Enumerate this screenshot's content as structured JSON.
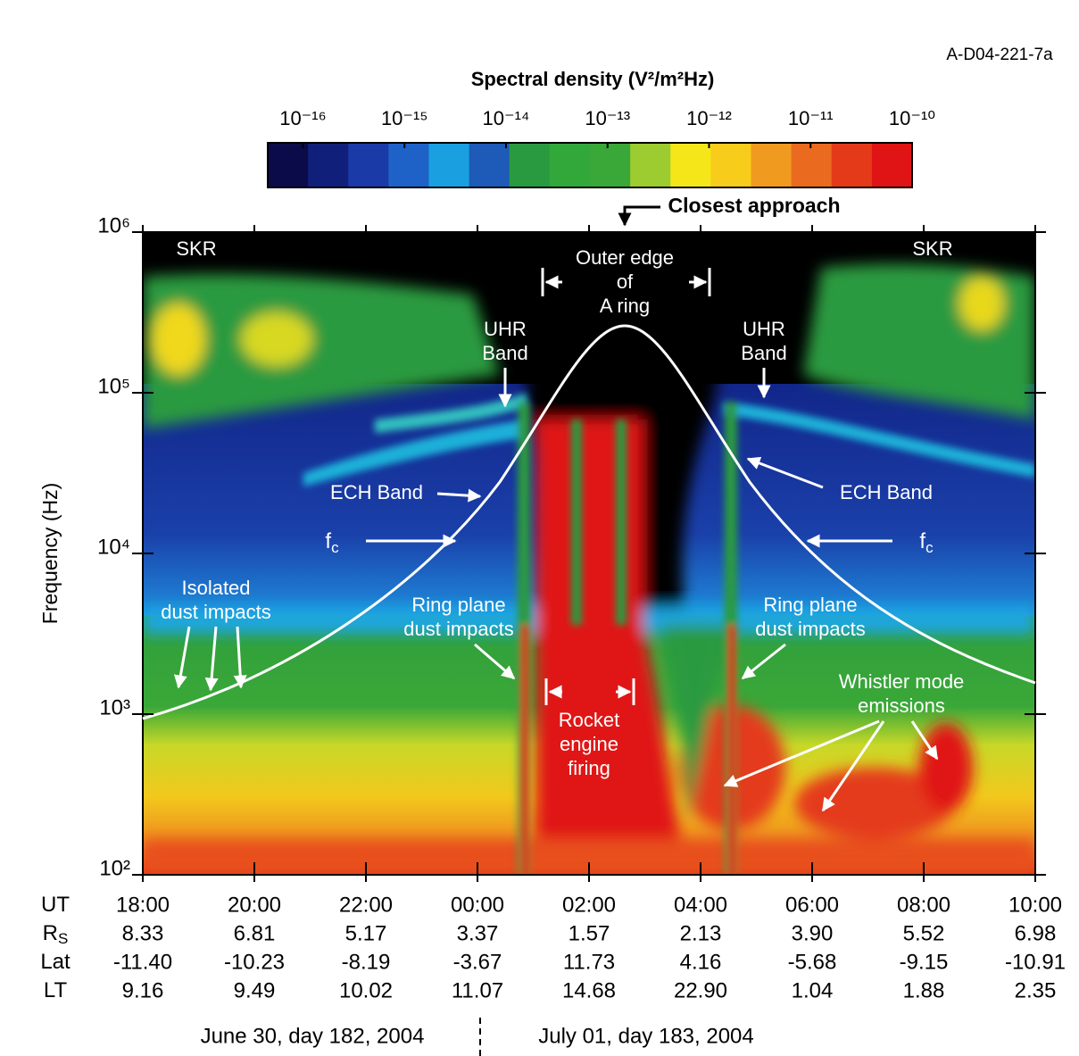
{
  "chart_data": {
    "type": "spectrogram",
    "figure_id": "A-D04-221-7a",
    "colorbar": {
      "title": "Spectral density  (V²/m²Hz)",
      "clim": [
        4.5e-17,
        1e-10
      ],
      "log": true,
      "ticks": [
        {
          "value": 1e-16,
          "label": "10⁻¹⁶"
        },
        {
          "value": 1e-15,
          "label": "10⁻¹⁵"
        },
        {
          "value": 1e-14,
          "label": "10⁻¹⁴"
        },
        {
          "value": 1e-13,
          "label": "10⁻¹³"
        },
        {
          "value": 1e-12,
          "label": "10⁻¹²"
        },
        {
          "value": 1e-11,
          "label": "10⁻¹¹"
        },
        {
          "value": 1e-10,
          "label": "10⁻¹⁰"
        }
      ],
      "colormap": [
        "#0b0b4a",
        "#10207a",
        "#1a3aa8",
        "#1e62c8",
        "#1aa0e0",
        "#1e5ab8",
        "#2a9a40",
        "#33a83a",
        "#3aa838",
        "#9ccc30",
        "#f5e61a",
        "#f8cc1a",
        "#f09a20",
        "#ea6a20",
        "#e43a1a",
        "#e01414"
      ]
    },
    "ylabel": "Frequency  (Hz)",
    "yscale": "log",
    "ylim": [
      100,
      1000000
    ],
    "yticks": [
      {
        "value": 100,
        "label": "10²"
      },
      {
        "value": 1000,
        "label": "10³"
      },
      {
        "value": 10000,
        "label": "10⁴"
      },
      {
        "value": 100000,
        "label": "10⁵"
      },
      {
        "value": 1000000,
        "label": "10⁶"
      }
    ],
    "table": {
      "rows": [
        {
          "label": "UT",
          "values": [
            "18:00",
            "20:00",
            "22:00",
            "00:00",
            "02:00",
            "04:00",
            "06:00",
            "08:00",
            "10:00"
          ]
        },
        {
          "label": "R",
          "subscript": "S",
          "values": [
            "8.33",
            "6.81",
            "5.17",
            "3.37",
            "1.57",
            "2.13",
            "3.90",
            "5.52",
            "6.98"
          ]
        },
        {
          "label": "Lat",
          "values": [
            "-11.40",
            "-10.23",
            "-8.19",
            "-3.67",
            "11.73",
            "4.16",
            "-5.68",
            "-9.15",
            "-10.91"
          ]
        },
        {
          "label": "LT",
          "values": [
            "9.16",
            "9.49",
            "10.02",
            "11.07",
            "14.68",
            "22.90",
            "1.04",
            "1.88",
            "2.35"
          ]
        }
      ]
    },
    "dates": [
      "June 30, day 182, 2004",
      "July 01, day 183, 2004"
    ],
    "annotations": [
      {
        "lines": [
          "Closest approach"
        ]
      },
      {
        "lines": [
          "SKR"
        ]
      },
      {
        "lines": [
          "SKR"
        ]
      },
      {
        "lines": [
          "Outer edge",
          "of",
          "A ring"
        ]
      },
      {
        "lines": [
          "UHR",
          "Band"
        ]
      },
      {
        "lines": [
          "UHR",
          "Band"
        ]
      },
      {
        "lines": [
          "ECH Band"
        ]
      },
      {
        "lines": [
          "ECH Band"
        ]
      },
      {
        "lines": [
          "f"
        ],
        "subscript": "c"
      },
      {
        "lines": [
          "f"
        ],
        "subscript": "c"
      },
      {
        "lines": [
          "Isolated",
          "dust impacts"
        ]
      },
      {
        "lines": [
          "Ring plane",
          "dust impacts"
        ]
      },
      {
        "lines": [
          "Ring plane",
          "dust impacts"
        ]
      },
      {
        "lines": [
          "Rocket",
          "engine",
          "firing"
        ]
      },
      {
        "lines": [
          "Whistler mode",
          "emissions"
        ]
      }
    ]
  }
}
